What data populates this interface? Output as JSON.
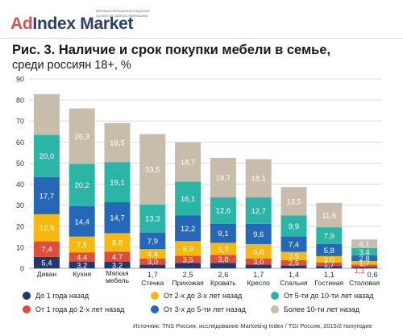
{
  "logo": {
    "ad": "Ad",
    "rest": "Index Market",
    "tagline_1": "деловые отношения в журнале",
    "tagline_2": "ссылки на сайтах обменников"
  },
  "header": {
    "title": "Рис. 3. Наличие и срок покупки мебели в семье,",
    "subtitle": "среди россиян 18+, %"
  },
  "source": "Источник: TNS Россия, исследование Marketing Index / TGI Россия, 2015/2 полугодие",
  "chart_data": {
    "type": "bar",
    "stacked": true,
    "ylim": [
      0,
      90
    ],
    "yticks": [
      0,
      10,
      20,
      30,
      40,
      50,
      60,
      70,
      80,
      90
    ],
    "grid": true,
    "categories": [
      "Диван",
      "Кухня",
      "Мягкая мебель",
      "Стенка",
      "Прихожая",
      "Кровать",
      "Кресло",
      "Спальня",
      "Гостиная",
      "Столовая"
    ],
    "series": [
      {
        "name": "До 1 года назад",
        "color": "#1f3a6e",
        "label_color": "#ffffff",
        "values": [
          5.4,
          3.2,
          3.2,
          1.7,
          2.5,
          2.6,
          1.7,
          1.4,
          1.1,
          0.6
        ]
      },
      {
        "name": "От 1 года до 2-х лет назад",
        "color": "#e04e3a",
        "label_color": "#ffffff",
        "values": [
          7.4,
          4.4,
          4.7,
          3.0,
          3.5,
          3.8,
          3.0,
          2.5,
          1.7,
          1.1
        ]
      },
      {
        "name": "От 2-х до 3-х лет назад",
        "color": "#f6b912",
        "label_color": "#ffffff",
        "values": [
          12.9,
          7.5,
          8.8,
          4.4,
          6.9,
          5.7,
          6.8,
          3.9,
          3.0,
          1.7
        ]
      },
      {
        "name": "От 3-х до 5-ти лет назад",
        "color": "#2668b8",
        "label_color": "#ffffff",
        "values": [
          17.7,
          14.4,
          14.7,
          7.9,
          12.2,
          9.1,
          9.6,
          7.4,
          5.8,
          2.8
        ]
      },
      {
        "name": "От 5-ти до 10-ти лет назад",
        "color": "#2bb5a6",
        "label_color": "#ffffff",
        "values": [
          20.0,
          20.2,
          19.1,
          13.3,
          16.1,
          12.6,
          12.7,
          9.9,
          7.9,
          3.4
        ]
      },
      {
        "name": "Более 10-ти лет назад",
        "color": "#c8bcaa",
        "label_color": "#ffffff",
        "values": [
          19.4,
          26.3,
          18.5,
          33.5,
          18.7,
          18.7,
          18.1,
          13.5,
          11.6,
          4.1
        ]
      }
    ],
    "label_overrides": {
      "below": {
        "Стенка": "1,7",
        "Прихожая": "2,5",
        "Кровать": "2,6",
        "Кресло": "1,7",
        "Спальня": "1,4",
        "Гостиная": "1,1",
        "Столовая": "0,6"
      },
      "below_red": {
        "Столовая": "1,1"
      }
    },
    "visible_labels": {
      "Диван": [
        "5,4",
        "7,4",
        "12,9",
        "17,7",
        "20,0",
        ""
      ],
      "Кухня": [
        "3,2",
        "4,4",
        "7,5",
        "14,4",
        "20,2",
        "26,3"
      ],
      "Мягкая мебель": [
        "3,2",
        "4,7",
        "8,8",
        "14,7",
        "19,1",
        "18,5"
      ],
      "Стенка": [
        "",
        "3,0",
        "4,4",
        "7,9",
        "13,3",
        "33,5"
      ],
      "Прихожая": [
        "",
        "3,5",
        "6,9",
        "12,2",
        "16,1",
        "18,7"
      ],
      "Кровать": [
        "",
        "3,8",
        "5,7",
        "9,1",
        "12,6",
        "18,7"
      ],
      "Кресло": [
        "",
        "3,0",
        "6,8",
        "9,6",
        "12,7",
        "18,1"
      ],
      "Спальня": [
        "",
        "2,5",
        "3,9",
        "7,4",
        "9,9",
        "13,5"
      ],
      "Гостиная": [
        "",
        "1,7",
        "3,0",
        "5,8",
        "7,9",
        "11,6"
      ],
      "Столовая": [
        "",
        "",
        "1,7",
        "2,8",
        "3,4",
        "4,1"
      ]
    }
  },
  "legend": [
    {
      "label": "До 1 года назад",
      "color": "#1f3a6e"
    },
    {
      "label": "От 2-х до 3-х лет назад",
      "color": "#f6b912"
    },
    {
      "label": "От 5-ти до 10-ти лет назад",
      "color": "#2bb5a6"
    },
    {
      "label": "От 1 года до 2-х лет назад",
      "color": "#e04e3a"
    },
    {
      "label": "От 3-х до 5-ти лет назад",
      "color": "#2668b8"
    },
    {
      "label": "Более 10-ти лет назад",
      "color": "#c8bcaa"
    }
  ]
}
